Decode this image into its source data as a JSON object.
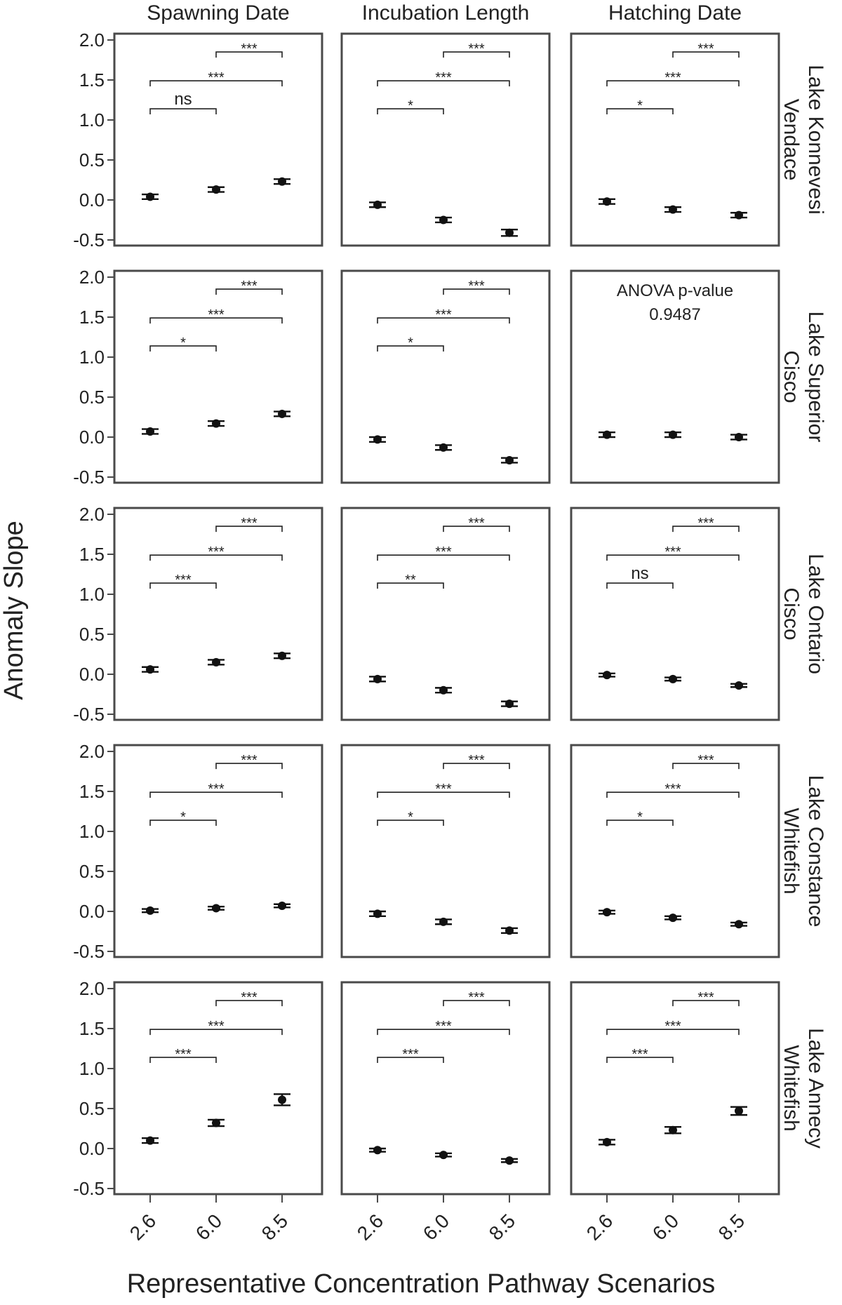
{
  "chart_data": {
    "type": "scatter",
    "layout": "facet-grid",
    "xlabel": "Representative Concentration Pathway Scenarios",
    "ylabel": "Anomaly Slope",
    "x_categories": [
      "2.6",
      "6.0",
      "8.5"
    ],
    "ylim": [
      -0.55,
      2.05
    ],
    "yticks": [
      2.0,
      1.5,
      1.0,
      0.5,
      0.0,
      -0.5
    ],
    "ytick_labels": [
      "2.0",
      "1.5",
      "1.0",
      "0.5",
      "0.0",
      "-0.5"
    ],
    "grid": false,
    "columns": [
      "Spawning Date",
      "Incubation Length",
      "Hatching Date"
    ],
    "rows": [
      {
        "label_line1": "Lake Konnevesi",
        "label_line2": "Vendace"
      },
      {
        "label_line1": "Lake Superior",
        "label_line2": "Cisco"
      },
      {
        "label_line1": "Lake Ontario",
        "label_line2": "Cisco"
      },
      {
        "label_line1": "Lake Constance",
        "label_line2": "Whitefish"
      },
      {
        "label_line1": "Lake Annecy",
        "label_line2": "Whitefish"
      }
    ],
    "panels": [
      [
        {
          "values": [
            0.04,
            0.13,
            0.23
          ],
          "err": [
            0.03,
            0.03,
            0.03
          ],
          "sig": [
            "ns",
            "***",
            "***"
          ]
        },
        {
          "values": [
            -0.06,
            -0.25,
            -0.41
          ],
          "err": [
            0.03,
            0.03,
            0.04
          ],
          "sig": [
            "*",
            "***",
            "***"
          ]
        },
        {
          "values": [
            -0.02,
            -0.12,
            -0.19
          ],
          "err": [
            0.03,
            0.03,
            0.03
          ],
          "sig": [
            "*",
            "***",
            "***"
          ]
        }
      ],
      [
        {
          "values": [
            0.07,
            0.17,
            0.29
          ],
          "err": [
            0.03,
            0.03,
            0.03
          ],
          "sig": [
            "*",
            "***",
            "***"
          ]
        },
        {
          "values": [
            -0.03,
            -0.13,
            -0.29
          ],
          "err": [
            0.03,
            0.03,
            0.03
          ],
          "sig": [
            "*",
            "***",
            "***"
          ]
        },
        {
          "values": [
            0.03,
            0.03,
            0.0
          ],
          "err": [
            0.03,
            0.03,
            0.03
          ],
          "sig": [],
          "annotation_line1": "ANOVA p-value",
          "annotation_line2": "0.9487"
        }
      ],
      [
        {
          "values": [
            0.06,
            0.15,
            0.23
          ],
          "err": [
            0.03,
            0.03,
            0.03
          ],
          "sig": [
            "***",
            "***",
            "***"
          ]
        },
        {
          "values": [
            -0.06,
            -0.2,
            -0.37
          ],
          "err": [
            0.03,
            0.03,
            0.03
          ],
          "sig": [
            "**",
            "***",
            "***"
          ]
        },
        {
          "values": [
            -0.01,
            -0.06,
            -0.14
          ],
          "err": [
            0.02,
            0.02,
            0.02
          ],
          "sig": [
            "ns",
            "***",
            "***"
          ]
        }
      ],
      [
        {
          "values": [
            0.01,
            0.04,
            0.07
          ],
          "err": [
            0.02,
            0.02,
            0.02
          ],
          "sig": [
            "*",
            "***",
            "***"
          ]
        },
        {
          "values": [
            -0.03,
            -0.13,
            -0.24
          ],
          "err": [
            0.03,
            0.03,
            0.03
          ],
          "sig": [
            "*",
            "***",
            "***"
          ]
        },
        {
          "values": [
            -0.01,
            -0.08,
            -0.16
          ],
          "err": [
            0.02,
            0.02,
            0.02
          ],
          "sig": [
            "*",
            "***",
            "***"
          ]
        }
      ],
      [
        {
          "values": [
            0.1,
            0.32,
            0.61
          ],
          "err": [
            0.03,
            0.04,
            0.07
          ],
          "sig": [
            "***",
            "***",
            "***"
          ]
        },
        {
          "values": [
            -0.02,
            -0.08,
            -0.15
          ],
          "err": [
            0.02,
            0.02,
            0.02
          ],
          "sig": [
            "***",
            "***",
            "***"
          ]
        },
        {
          "values": [
            0.08,
            0.23,
            0.47
          ],
          "err": [
            0.03,
            0.04,
            0.05
          ],
          "sig": [
            "***",
            "***",
            "***"
          ]
        }
      ]
    ]
  }
}
